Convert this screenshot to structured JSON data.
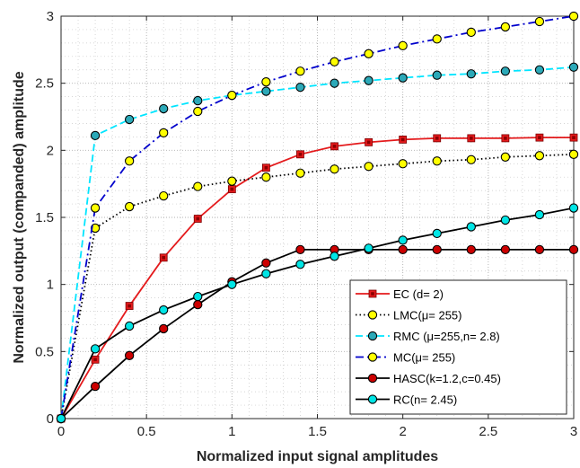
{
  "chart_data": {
    "type": "line",
    "xlabel": "Normalized input signal amplitudes",
    "ylabel": "Normalized output (companded) amplitude",
    "xlim": [
      0,
      3
    ],
    "ylim": [
      0,
      3
    ],
    "xticks": [
      "0",
      "0.5",
      "1",
      "1.5",
      "2",
      "2.5",
      "3"
    ],
    "yticks": [
      "0",
      "0.5",
      "1",
      "1.5",
      "2",
      "2.5",
      "3"
    ],
    "grid": "on",
    "legend_position": "bottom-right",
    "x": [
      0,
      0.2,
      0.4,
      0.6,
      0.8,
      1.0,
      1.2,
      1.4,
      1.6,
      1.8,
      2.0,
      2.2,
      2.4,
      2.6,
      2.8,
      3.0
    ],
    "series": [
      {
        "name": "EC (d= 2)",
        "color": "#e41a1c",
        "line_style": "solid",
        "marker": "square",
        "marker_fill": "#e41a1c",
        "values": [
          0,
          0.44,
          0.84,
          1.2,
          1.49,
          1.71,
          1.87,
          1.97,
          2.03,
          2.06,
          2.08,
          2.09,
          2.09,
          2.09,
          2.095,
          2.095
        ]
      },
      {
        "name": "LMC(μ= 255)",
        "color": "#000000",
        "line_style": "dotted",
        "marker": "circle",
        "marker_fill": "#ffff00",
        "values": [
          0,
          1.42,
          1.58,
          1.66,
          1.73,
          1.77,
          1.8,
          1.83,
          1.86,
          1.88,
          1.9,
          1.92,
          1.93,
          1.95,
          1.96,
          1.97
        ]
      },
      {
        "name": "RMC (μ=255,n= 2.8)",
        "color": "#00e5ff",
        "line_style": "dashed",
        "marker": "circle",
        "marker_fill": "#2ca9b8",
        "values": [
          0,
          2.11,
          2.23,
          2.31,
          2.37,
          2.41,
          2.44,
          2.47,
          2.5,
          2.52,
          2.54,
          2.56,
          2.57,
          2.59,
          2.6,
          2.62
        ]
      },
      {
        "name": "MC(μ= 255)",
        "color": "#0000cc",
        "line_style": "dashdot",
        "marker": "circle",
        "marker_fill": "#ffff00",
        "values": [
          0,
          1.57,
          1.92,
          2.13,
          2.29,
          2.41,
          2.51,
          2.59,
          2.66,
          2.72,
          2.78,
          2.83,
          2.88,
          2.92,
          2.96,
          3.0
        ]
      },
      {
        "name": "HASC(k=1.2,c=0.45)",
        "color": "#000000",
        "line_style": "solid",
        "marker": "circle",
        "marker_fill": "#cc0000",
        "values": [
          0,
          0.24,
          0.47,
          0.67,
          0.85,
          1.02,
          1.16,
          1.26,
          1.26,
          1.26,
          1.26,
          1.26,
          1.26,
          1.26,
          1.26,
          1.26
        ]
      },
      {
        "name": "RC(n= 2.45)",
        "color": "#000000",
        "line_style": "solid",
        "marker": "circle",
        "marker_fill": "#00e5e5",
        "values": [
          0,
          0.52,
          0.69,
          0.81,
          0.91,
          1.0,
          1.08,
          1.15,
          1.21,
          1.27,
          1.33,
          1.38,
          1.43,
          1.48,
          1.52,
          1.57
        ]
      }
    ]
  }
}
